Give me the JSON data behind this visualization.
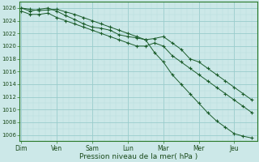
{
  "background_color": "#cce8e8",
  "grid_major_color": "#99cccc",
  "grid_minor_color": "#b8dcdc",
  "line_color": "#1a5c2a",
  "x_labels": [
    "Dim",
    "Ven",
    "Sam",
    "Lun",
    "Mar",
    "Mer",
    "Jeu"
  ],
  "x_positions": [
    0,
    1,
    2,
    3,
    4,
    5,
    6
  ],
  "xlabel": "Pression niveau de la mer( hPa )",
  "ylim": [
    1005.0,
    1027.0
  ],
  "yticks": [
    1006,
    1008,
    1010,
    1012,
    1014,
    1016,
    1018,
    1020,
    1022,
    1024,
    1026
  ],
  "series": [
    {
      "x": [
        0.0,
        0.25,
        0.5,
        0.75,
        1.0,
        1.25,
        1.5,
        1.75,
        2.0,
        2.25,
        2.5,
        2.75,
        3.0,
        3.25,
        3.5,
        3.75,
        4.0,
        4.25,
        4.5,
        4.75,
        5.0,
        5.25,
        5.5,
        5.75,
        6.0,
        6.25,
        6.5
      ],
      "y": [
        1026.0,
        1025.8,
        1025.6,
        1025.7,
        1025.8,
        1025.4,
        1025.0,
        1024.5,
        1024.0,
        1023.5,
        1023.0,
        1022.5,
        1022.0,
        1021.5,
        1021.0,
        1019.0,
        1017.5,
        1015.5,
        1014.0,
        1012.5,
        1011.0,
        1009.5,
        1008.2,
        1007.2,
        1006.2,
        1005.8,
        1005.5
      ]
    },
    {
      "x": [
        0.0,
        0.25,
        0.5,
        0.75,
        1.0,
        1.25,
        1.5,
        1.75,
        2.0,
        2.25,
        2.5,
        2.75,
        3.0,
        3.25,
        3.5,
        3.75,
        4.0,
        4.25,
        4.5,
        4.75,
        5.0,
        5.25,
        5.5,
        5.75,
        6.0,
        6.25,
        6.5
      ],
      "y": [
        1026.0,
        1025.5,
        1025.8,
        1026.0,
        1025.5,
        1024.8,
        1024.2,
        1023.5,
        1023.0,
        1022.8,
        1022.5,
        1021.8,
        1021.5,
        1021.3,
        1021.0,
        1021.2,
        1021.5,
        1020.5,
        1019.5,
        1018.0,
        1017.5,
        1016.5,
        1015.5,
        1014.5,
        1013.5,
        1012.5,
        1011.5
      ]
    },
    {
      "x": [
        0.0,
        0.25,
        0.5,
        0.75,
        1.0,
        1.25,
        1.5,
        1.75,
        2.0,
        2.25,
        2.5,
        2.75,
        3.0,
        3.25,
        3.5,
        3.75,
        4.0,
        4.25,
        4.5,
        4.75,
        5.0,
        5.25,
        5.5,
        5.75,
        6.0,
        6.25,
        6.5
      ],
      "y": [
        1025.5,
        1025.0,
        1025.0,
        1025.2,
        1024.5,
        1024.0,
        1023.5,
        1023.0,
        1022.5,
        1022.0,
        1021.5,
        1021.0,
        1020.5,
        1020.0,
        1020.0,
        1020.5,
        1020.0,
        1018.5,
        1017.5,
        1016.5,
        1015.5,
        1014.5,
        1013.5,
        1012.5,
        1011.5,
        1010.5,
        1009.5
      ]
    }
  ]
}
